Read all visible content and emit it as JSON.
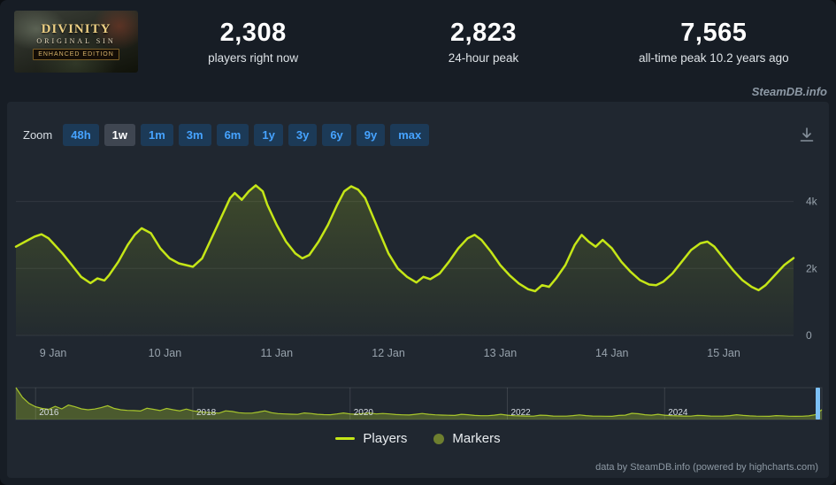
{
  "colors": {
    "accent_blue": "#46a3ff",
    "line": "#c5e617",
    "marker": "#6e7f2f",
    "axis_label": "#97a2ac",
    "grid": "rgba(255,255,255,0.08)",
    "nav_fill": "rgba(174,207,42,0.30)",
    "nav_line": "#a8c62c",
    "nav_tick_label": "#d6dce2",
    "handle": "#7cc0f5"
  },
  "header": {
    "capsule": {
      "line1": "DIVINITY",
      "line2": "ORIGINAL SIN",
      "banner": "ENHANCED EDITION"
    },
    "stats": [
      {
        "value": "2,308",
        "label": "players right now"
      },
      {
        "value": "2,823",
        "label": "24-hour peak"
      },
      {
        "value": "7,565",
        "label": "all-time peak 10.2 years ago"
      }
    ]
  },
  "watermark": "SteamDB.info",
  "toolbar": {
    "zoom_label": "Zoom",
    "buttons": [
      {
        "label": "48h",
        "selected": false
      },
      {
        "label": "1w",
        "selected": true
      },
      {
        "label": "1m",
        "selected": false
      },
      {
        "label": "3m",
        "selected": false
      },
      {
        "label": "6m",
        "selected": false
      },
      {
        "label": "1y",
        "selected": false
      },
      {
        "label": "3y",
        "selected": false
      },
      {
        "label": "6y",
        "selected": false
      },
      {
        "label": "9y",
        "selected": false
      },
      {
        "label": "max",
        "selected": false
      }
    ],
    "download_icon": "download-icon"
  },
  "chart_data": {
    "type": "line",
    "x_unit": "hours",
    "xlim": [
      0,
      167
    ],
    "ylim": [
      0,
      5600
    ],
    "grid": "horizontal",
    "legend_position": "bottom",
    "yticks": [
      {
        "v": 0,
        "label": "0"
      },
      {
        "v": 2000,
        "label": "2k"
      },
      {
        "v": 4000,
        "label": "4k"
      }
    ],
    "xticks": [
      {
        "v": 8,
        "label": "9 Jan"
      },
      {
        "v": 32,
        "label": "10 Jan"
      },
      {
        "v": 56,
        "label": "11 Jan"
      },
      {
        "v": 80,
        "label": "12 Jan"
      },
      {
        "v": 104,
        "label": "13 Jan"
      },
      {
        "v": 128,
        "label": "14 Jan"
      },
      {
        "v": 152,
        "label": "15 Jan"
      }
    ],
    "series": [
      {
        "name": "Players",
        "color": "#c5e617",
        "points": [
          [
            0,
            2650
          ],
          [
            2,
            2800
          ],
          [
            4,
            2950
          ],
          [
            5.5,
            3020
          ],
          [
            7,
            2900
          ],
          [
            8,
            2750
          ],
          [
            10,
            2450
          ],
          [
            12,
            2100
          ],
          [
            14,
            1750
          ],
          [
            16,
            1560
          ],
          [
            17.5,
            1700
          ],
          [
            19,
            1640
          ],
          [
            20,
            1800
          ],
          [
            22,
            2200
          ],
          [
            24,
            2700
          ],
          [
            25.5,
            3000
          ],
          [
            27,
            3200
          ],
          [
            29,
            3050
          ],
          [
            31,
            2600
          ],
          [
            33,
            2300
          ],
          [
            35,
            2150
          ],
          [
            38,
            2050
          ],
          [
            40,
            2300
          ],
          [
            42,
            2900
          ],
          [
            44,
            3500
          ],
          [
            46,
            4100
          ],
          [
            47,
            4250
          ],
          [
            48.5,
            4050
          ],
          [
            50,
            4300
          ],
          [
            51.5,
            4480
          ],
          [
            53,
            4300
          ],
          [
            54,
            3900
          ],
          [
            56,
            3300
          ],
          [
            58,
            2800
          ],
          [
            60,
            2450
          ],
          [
            61.5,
            2300
          ],
          [
            63,
            2400
          ],
          [
            65,
            2800
          ],
          [
            67,
            3300
          ],
          [
            69,
            3900
          ],
          [
            70.5,
            4300
          ],
          [
            72,
            4450
          ],
          [
            73.5,
            4350
          ],
          [
            75,
            4100
          ],
          [
            78,
            3100
          ],
          [
            80,
            2450
          ],
          [
            82,
            2000
          ],
          [
            84,
            1750
          ],
          [
            86,
            1580
          ],
          [
            87.5,
            1750
          ],
          [
            89,
            1680
          ],
          [
            91,
            1850
          ],
          [
            93,
            2200
          ],
          [
            95,
            2600
          ],
          [
            97,
            2900
          ],
          [
            98.5,
            3000
          ],
          [
            100,
            2850
          ],
          [
            102,
            2500
          ],
          [
            104,
            2100
          ],
          [
            106,
            1800
          ],
          [
            108,
            1550
          ],
          [
            110,
            1380
          ],
          [
            111.5,
            1320
          ],
          [
            113,
            1500
          ],
          [
            114.5,
            1450
          ],
          [
            116,
            1700
          ],
          [
            118,
            2100
          ],
          [
            120,
            2700
          ],
          [
            121.5,
            3000
          ],
          [
            123,
            2800
          ],
          [
            124.5,
            2650
          ],
          [
            126,
            2850
          ],
          [
            128,
            2600
          ],
          [
            130,
            2200
          ],
          [
            132,
            1900
          ],
          [
            134,
            1650
          ],
          [
            136,
            1520
          ],
          [
            137.5,
            1500
          ],
          [
            139,
            1600
          ],
          [
            141,
            1850
          ],
          [
            143,
            2200
          ],
          [
            145,
            2550
          ],
          [
            147,
            2750
          ],
          [
            148.5,
            2800
          ],
          [
            150,
            2650
          ],
          [
            152,
            2300
          ],
          [
            154,
            1950
          ],
          [
            156,
            1650
          ],
          [
            158,
            1450
          ],
          [
            159.5,
            1350
          ],
          [
            161,
            1500
          ],
          [
            163,
            1800
          ],
          [
            165,
            2100
          ],
          [
            167,
            2308
          ]
        ]
      }
    ]
  },
  "navigator": {
    "ymax": 7500,
    "start_year": 2015.75,
    "end_year": 2026.0,
    "ticks": [
      {
        "year": 2016,
        "label": "2016"
      },
      {
        "year": 2018,
        "label": "2018"
      },
      {
        "year": 2020,
        "label": "2020"
      },
      {
        "year": 2022,
        "label": "2022"
      },
      {
        "year": 2024,
        "label": "2024"
      }
    ],
    "values": [
      7500,
      5200,
      3800,
      3000,
      2600,
      2400,
      3100,
      2500,
      3400,
      3000,
      2500,
      2300,
      2450,
      2800,
      3250,
      2600,
      2300,
      2150,
      2100,
      2000,
      2650,
      2400,
      2100,
      2600,
      2300,
      2050,
      2450,
      2050,
      1850,
      1700,
      1600,
      1500,
      2050,
      1900,
      1600,
      1500,
      1500,
      1750,
      2050,
      1600,
      1400,
      1320,
      1260,
      1200,
      1550,
      1420,
      1220,
      1150,
      1120,
      1320,
      1550,
      1320,
      1220,
      1420,
      1520,
      1320,
      1420,
      1320,
      1160,
      1100,
      1060,
      1220,
      1420,
      1220,
      1100,
      1050,
      1000,
      960,
      1220,
      1120,
      960,
      900,
      900,
      1020,
      1220,
      1020,
      900,
      860,
      820,
      800,
      1020,
      960,
      820,
      800,
      800,
      920,
      1080,
      920,
      820,
      800,
      780,
      760,
      960,
      1020,
      1450,
      1350,
      1120,
      1020,
      1220,
      1020,
      920,
      860,
      820,
      800,
      960,
      920,
      820,
      800,
      820,
      920,
      1120,
      960,
      860,
      800,
      780,
      760,
      920,
      860,
      780,
      760,
      780,
      860,
      1120,
      2308
    ]
  },
  "legend": [
    {
      "label": "Players",
      "symbol": "line",
      "color": "#c5e617"
    },
    {
      "label": "Markers",
      "symbol": "circle",
      "color": "#6e7f2f"
    }
  ],
  "credits": "data by SteamDB.info (powered by highcharts.com)"
}
